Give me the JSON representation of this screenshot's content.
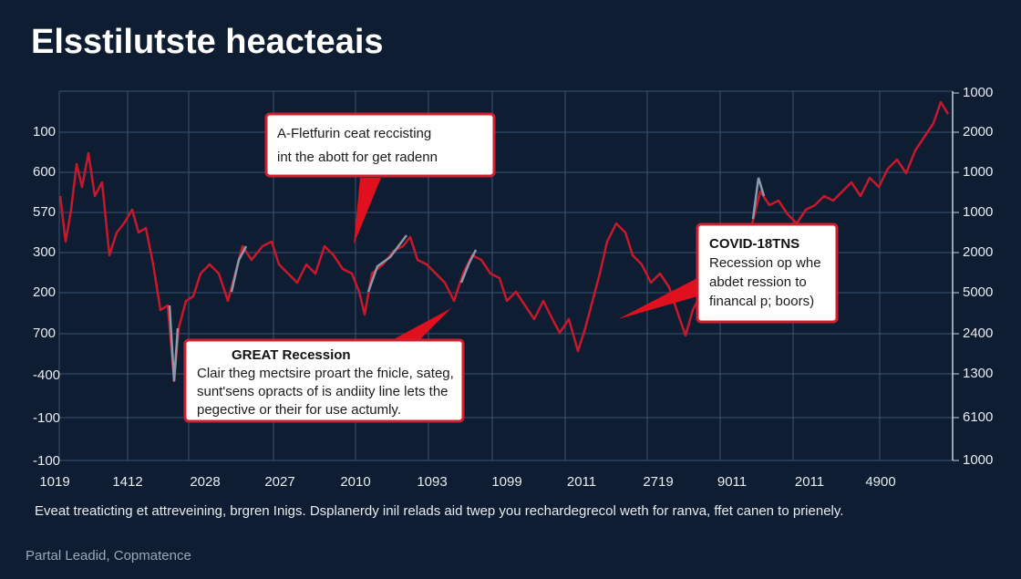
{
  "header": {
    "title": "Elsstilutste heacteais"
  },
  "y_axis_left": [
    "100",
    "600",
    "570",
    "300",
    "200",
    "700",
    "-400",
    "-100",
    "-100"
  ],
  "y_axis_right": [
    "1000",
    "2000",
    "1000",
    "1000",
    "2000",
    "5000",
    "2400",
    "1300",
    "6100",
    "1000"
  ],
  "x_axis": [
    "1019",
    "1412",
    "2028",
    "2027",
    "2010",
    "1093",
    "1099",
    "2011",
    "2719",
    "9011",
    "2011",
    "4900"
  ],
  "annotations": [
    {
      "lines": [
        "A-Fletfurin ceat reccisting",
        "int the abott for get radenn"
      ]
    },
    {
      "title": "GREAT Recession",
      "lines": [
        "Clair theg mectsire proart the fnicle, sateg,",
        "sunt'sens opracts of is andiity line lets the",
        "pegective or their for use actumly."
      ]
    },
    {
      "title": "COVID-18TNS",
      "lines": [
        "Recession op whe",
        "abdet ression to",
        "financal p; boors)"
      ]
    }
  ],
  "caption": "Eveat treaticting et attreveining, brgren Inigs. Dsplanerdy inil relads aid twep you rechardegrecol weth for ranva, ffet canen to prienely.",
  "footer": "Partal Leadid, Copmatence"
}
